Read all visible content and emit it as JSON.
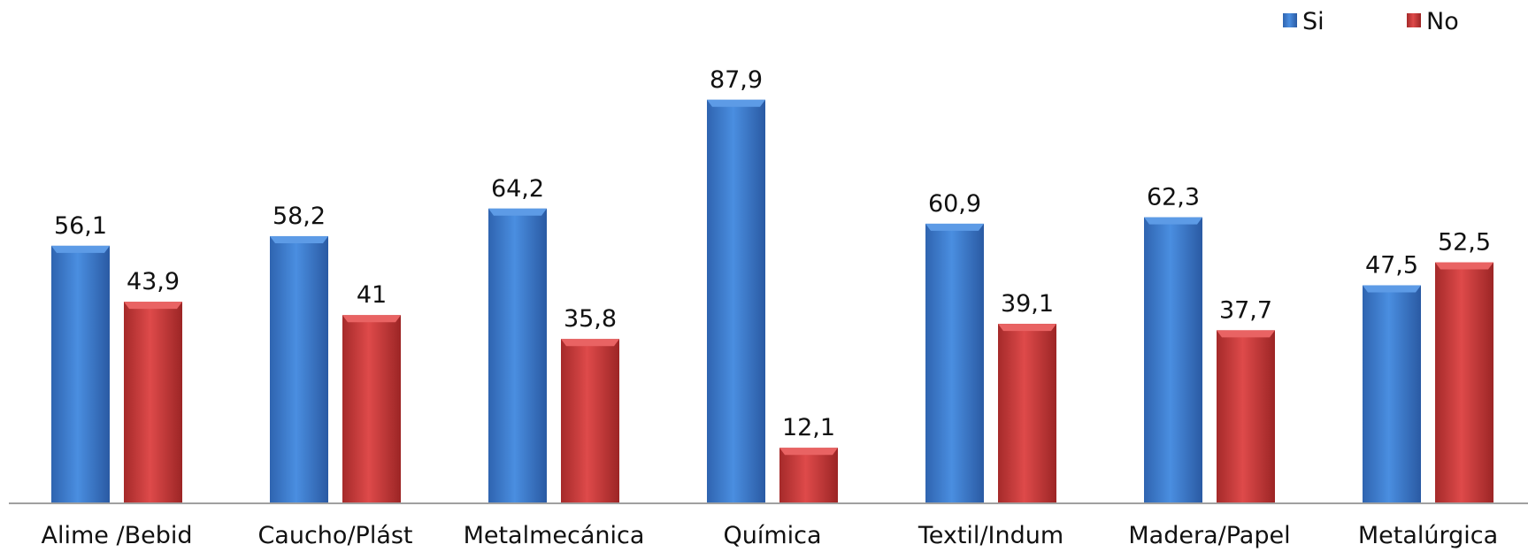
{
  "chart_data": {
    "type": "bar",
    "categories": [
      "Alime /Bebid",
      "Caucho/Plást",
      "Metalmecánica",
      "Química",
      "Textil/Indum",
      "Madera/Papel",
      "Metalúrgica"
    ],
    "series": [
      {
        "name": "Si",
        "color": "#3c7dd3",
        "values": [
          56.1,
          58.2,
          64.2,
          87.9,
          60.9,
          62.3,
          47.5
        ],
        "labels": [
          "56,1",
          "58,2",
          "64,2",
          "87,9",
          "60,9",
          "62,3",
          "47,5"
        ]
      },
      {
        "name": "No",
        "color": "#d23b3b",
        "values": [
          43.9,
          41,
          35.8,
          12.1,
          39.1,
          37.7,
          52.5
        ],
        "labels": [
          "43,9",
          "41",
          "35,8",
          "12,1",
          "39,1",
          "37,7",
          "52,5"
        ]
      }
    ],
    "title": "",
    "xlabel": "",
    "ylabel": "",
    "ylim": [
      0,
      100
    ],
    "grid": false,
    "legend_position": "top-right"
  }
}
